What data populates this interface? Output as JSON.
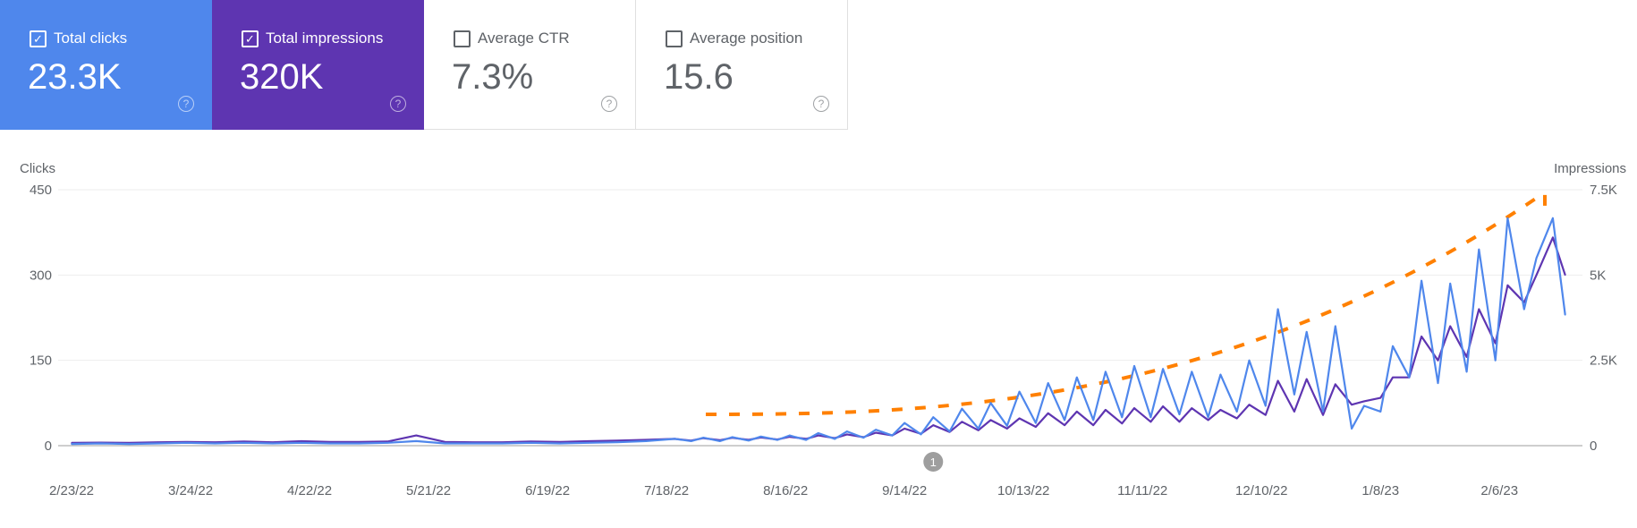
{
  "cards": [
    {
      "label": "Total clicks",
      "value": "23.3K",
      "checked": true,
      "color": "#4f87ec"
    },
    {
      "label": "Total impressions",
      "value": "320K",
      "checked": true,
      "color": "#5e35b1"
    },
    {
      "label": "Average CTR",
      "value": "7.3%",
      "checked": false
    },
    {
      "label": "Average position",
      "value": "15.6",
      "checked": false
    }
  ],
  "help_icon": "?",
  "chart_data": {
    "type": "line",
    "left_axis": {
      "label": "Clicks",
      "ticks": [
        "0",
        "150",
        "300",
        "450"
      ],
      "range": [
        0,
        450
      ]
    },
    "right_axis": {
      "label": "Impressions",
      "ticks": [
        "0",
        "2.5K",
        "5K",
        "7.5K"
      ],
      "range": [
        0,
        7500
      ]
    },
    "x_ticks": [
      "2/23/22",
      "3/24/22",
      "4/22/22",
      "5/21/22",
      "6/19/22",
      "7/18/22",
      "8/16/22",
      "9/14/22",
      "10/13/22",
      "11/11/22",
      "12/10/22",
      "1/8/23",
      "2/6/23"
    ],
    "grid": true,
    "annotation": {
      "label": "1",
      "date": "9/21/22"
    },
    "trend_annotation_color": "#ff8000",
    "x": [
      "2/23/22",
      "3/2/22",
      "3/9/22",
      "3/16/22",
      "3/23/22",
      "3/30/22",
      "4/6/22",
      "4/13/22",
      "4/20/22",
      "4/27/22",
      "5/4/22",
      "5/11/22",
      "5/18/22",
      "5/25/22",
      "6/1/22",
      "6/8/22",
      "6/15/22",
      "6/22/22",
      "6/29/22",
      "7/6/22",
      "7/13/22",
      "7/20/22",
      "7/24/22",
      "7/27/22",
      "7/31/22",
      "8/3/22",
      "8/7/22",
      "8/10/22",
      "8/14/22",
      "8/17/22",
      "8/21/22",
      "8/24/22",
      "8/28/22",
      "8/31/22",
      "9/4/22",
      "9/7/22",
      "9/11/22",
      "9/14/22",
      "9/18/22",
      "9/21/22",
      "9/25/22",
      "9/28/22",
      "10/2/22",
      "10/5/22",
      "10/9/22",
      "10/12/22",
      "10/16/22",
      "10/19/22",
      "10/23/22",
      "10/26/22",
      "10/30/22",
      "11/2/22",
      "11/6/22",
      "11/9/22",
      "11/13/22",
      "11/16/22",
      "11/20/22",
      "11/23/22",
      "11/27/22",
      "11/30/22",
      "12/4/22",
      "12/7/22",
      "12/11/22",
      "12/14/22",
      "12/18/22",
      "12/21/22",
      "12/25/22",
      "12/28/22",
      "1/1/23",
      "1/4/23",
      "1/8/23",
      "1/11/23",
      "1/15/23",
      "1/18/23",
      "1/22/23",
      "1/25/23",
      "1/29/23",
      "2/1/23",
      "2/5/23",
      "2/8/23",
      "2/12/23",
      "2/15/23",
      "2/19/23",
      "2/22/23"
    ],
    "series": [
      {
        "name": "Clicks",
        "axis": "left",
        "color": "#4f87ec",
        "values": [
          3,
          4,
          3,
          4,
          5,
          4,
          5,
          4,
          5,
          4,
          4,
          5,
          8,
          4,
          4,
          4,
          5,
          4,
          5,
          6,
          8,
          12,
          8,
          14,
          8,
          15,
          9,
          16,
          10,
          18,
          10,
          22,
          12,
          25,
          14,
          28,
          18,
          40,
          20,
          50,
          25,
          65,
          30,
          75,
          35,
          95,
          40,
          110,
          45,
          120,
          45,
          130,
          50,
          140,
          50,
          135,
          55,
          130,
          50,
          125,
          60,
          150,
          70,
          240,
          90,
          200,
          60,
          210,
          30,
          70,
          60,
          175,
          120,
          290,
          110,
          285,
          130,
          345,
          150,
          400,
          240,
          330,
          400,
          230
        ]
      },
      {
        "name": "Impressions",
        "axis": "right",
        "color": "#5e35b1",
        "values": [
          80,
          90,
          80,
          100,
          110,
          100,
          120,
          100,
          130,
          110,
          110,
          120,
          300,
          110,
          100,
          100,
          120,
          110,
          130,
          150,
          170,
          200,
          150,
          220,
          160,
          230,
          170,
          240,
          180,
          260,
          200,
          300,
          220,
          330,
          250,
          380,
          300,
          500,
          350,
          600,
          400,
          700,
          450,
          750,
          500,
          800,
          550,
          950,
          600,
          1000,
          600,
          1050,
          650,
          1100,
          700,
          1150,
          700,
          1100,
          750,
          1050,
          800,
          1200,
          900,
          1900,
          1000,
          1950,
          900,
          1800,
          1200,
          1300,
          1400,
          2000,
          2000,
          3200,
          2500,
          3500,
          2600,
          4000,
          3000,
          4700,
          4200,
          5000,
          6100,
          5000
        ]
      }
    ]
  }
}
